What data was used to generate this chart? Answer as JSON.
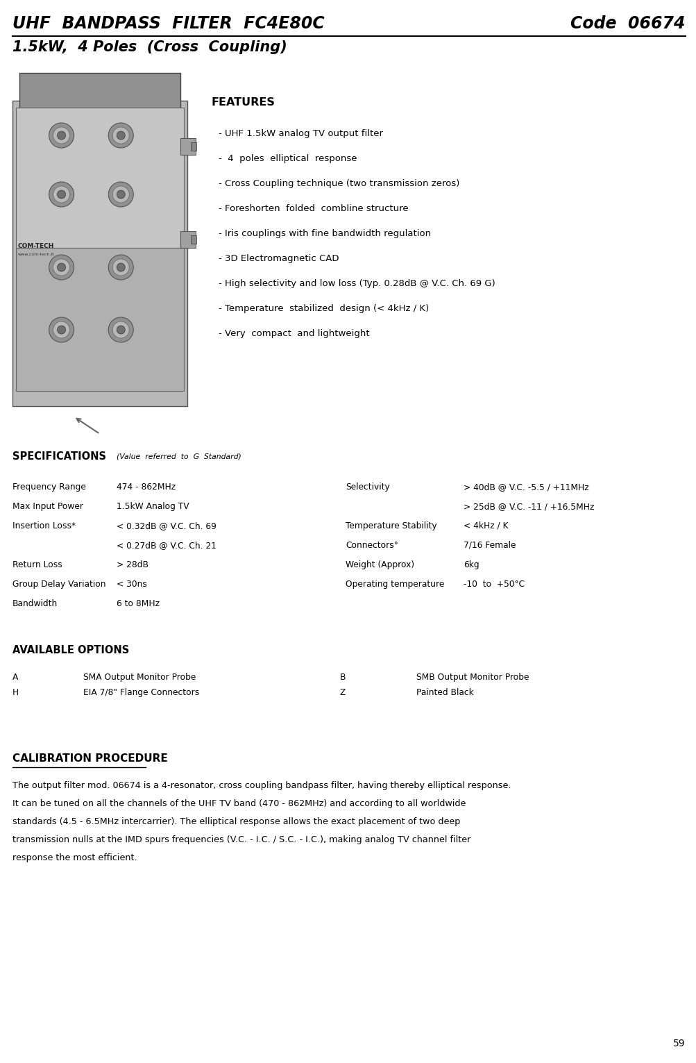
{
  "title_left": "UHF  BANDPASS  FILTER  FC4E80C",
  "title_right": "Code  06674",
  "subtitle": "1.5kW,  4 Poles  (Cross  Coupling)",
  "features_title": "FEATURES",
  "features": [
    "- UHF 1.5kW analog TV output filter",
    "-  4  poles  elliptical  response",
    "- Cross Coupling technique (two transmission zeros)",
    "- Foreshorten  folded  combline structure",
    "- Iris couplings with fine bandwidth regulation",
    "- 3D Electromagnetic CAD",
    "- High selectivity and low loss (Typ. 0.28dB @ V.C. Ch. 69 G)",
    "- Temperature  stabilized  design (< 4kHz / K)",
    "- Very  compact  and lightweight"
  ],
  "specs_title": "SPECIFICATIONS",
  "specs_subtitle": "(Value  referred  to  G  Standard)",
  "options_title": "AVAILABLE OPTIONS",
  "options": [
    [
      "A",
      "SMA Output Monitor Probe",
      "B",
      "SMB Output Monitor Probe"
    ],
    [
      "H",
      "EIA 7/8\" Flange Connectors",
      "Z",
      "Painted Black"
    ]
  ],
  "calibration_title": "CALIBRATION PROCEDURE",
  "calibration_lines": [
    "The output filter mod. 06674 is a 4-resonator, cross coupling bandpass filter, having thereby elliptical response.",
    "It can be tuned on all the channels of the UHF TV band (470 - 862MHz) and according to all worldwide",
    "standards (4.5 - 6.5MHz intercarrier). The elliptical response allows the exact placement of two deep",
    "transmission nulls at the IMD spurs frequencies (V.C. - I.C. / S.C. - I.C.), making analog TV channel filter",
    "response the most efficient."
  ],
  "page_number": "59",
  "bg_color": "#ffffff",
  "text_color": "#000000"
}
